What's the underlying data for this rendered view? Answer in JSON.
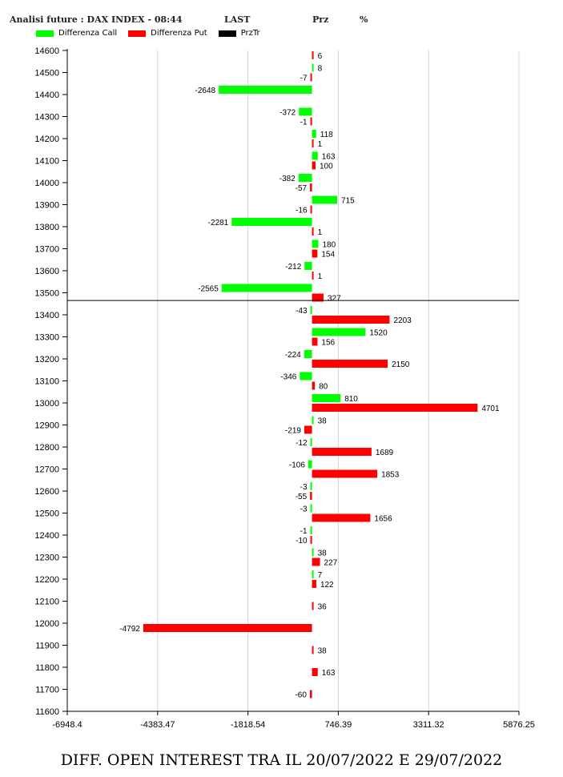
{
  "header": {
    "title": "Analisi future : DAX INDEX - 08:44",
    "last_label": "LAST",
    "prz_label": "Prz",
    "pct_label": "%"
  },
  "legend": [
    {
      "label": "Differenza Call",
      "color": "#00ff00"
    },
    {
      "label": "Differenza Put",
      "color": "#ff0000"
    },
    {
      "label": "PrzTr",
      "color": "#000000"
    }
  ],
  "footer": "DIFF. OPEN INTEREST TRA IL 20/07/2022 E 29/07/2022",
  "chart_data": {
    "type": "bar",
    "orientation": "horizontal",
    "categories": [
      14600,
      14500,
      14400,
      14300,
      14200,
      14100,
      14000,
      13900,
      13800,
      13700,
      13600,
      13500,
      13400,
      13300,
      13200,
      13100,
      13000,
      12900,
      12800,
      12700,
      12600,
      12500,
      12400,
      12300,
      12200,
      12100,
      12000,
      11900,
      11800,
      11700
    ],
    "series": [
      {
        "name": "Differenza Call",
        "color": "#00ff00",
        "values": [
          null,
          8,
          -2648,
          -372,
          118,
          163,
          -382,
          715,
          -2281,
          180,
          -212,
          -2565,
          -43,
          1520,
          -224,
          -346,
          810,
          38,
          -12,
          -106,
          -3,
          -3,
          -1,
          38,
          7,
          null,
          null,
          null,
          null,
          null
        ]
      },
      {
        "name": "Differenza Put",
        "color": "#ff0000",
        "values": [
          6,
          -7,
          null,
          -1,
          1,
          100,
          -57,
          -16,
          1,
          154,
          1,
          327,
          2203,
          156,
          2150,
          80,
          4701,
          -219,
          1689,
          1853,
          -55,
          1656,
          -10,
          227,
          122,
          36,
          -4792,
          38,
          163,
          -60
        ]
      }
    ],
    "x_ticks": [
      "-6948.4",
      "-4383.47",
      "-1818.54",
      "746.39",
      "3311.32",
      "5876.25"
    ],
    "xlim": [
      -6948.4,
      5876.25
    ],
    "ylim": [
      11600,
      14600
    ],
    "y_ticks": [
      14600,
      14500,
      14400,
      14300,
      14200,
      14100,
      14000,
      13900,
      13800,
      13700,
      13600,
      13500,
      13400,
      13300,
      13200,
      13100,
      13000,
      12900,
      12800,
      12700,
      12600,
      12500,
      12400,
      12300,
      12200,
      12100,
      12000,
      11900,
      11800,
      11700,
      11600
    ],
    "przTr_level": 13465,
    "grid": true
  }
}
